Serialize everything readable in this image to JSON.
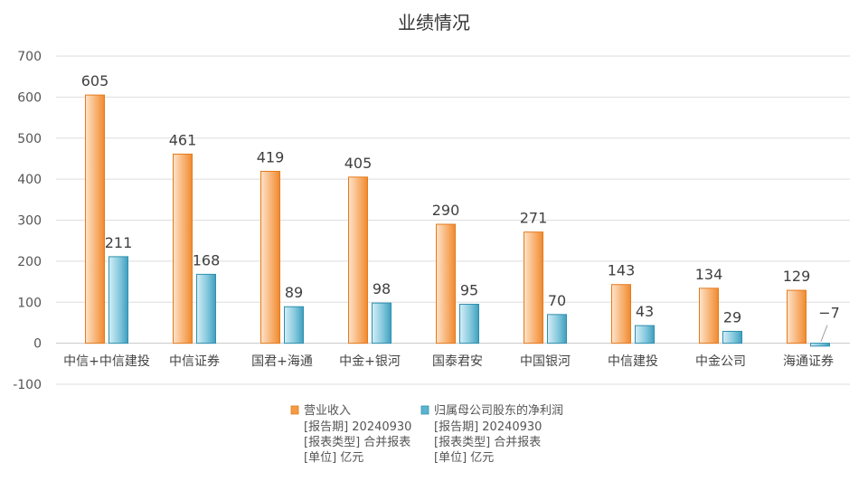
{
  "chart_data": {
    "type": "bar",
    "title": "业绩情况",
    "categories": [
      "中信+中信建投",
      "中信证券",
      "国君+海通",
      "中金+银河",
      "国泰君安",
      "中国银河",
      "中信建投",
      "中金公司",
      "海通证券"
    ],
    "series": [
      {
        "name": "营业收入",
        "values": [
          605,
          461,
          419,
          405,
          290,
          271,
          143,
          134,
          129
        ],
        "color": "#f59a45",
        "notes": [
          "[报告期] 20240930",
          "[报表类型] 合并报表",
          "[单位] 亿元"
        ]
      },
      {
        "name": "归属母公司股东的净利润",
        "values": [
          211,
          168,
          89,
          98,
          95,
          70,
          43,
          29,
          -7
        ],
        "color": "#5bb4cf",
        "notes": [
          "[报告期] 20240930",
          "[报表类型] 合并报表",
          "[单位] 亿元"
        ]
      }
    ],
    "data_labels": [
      [
        "605",
        "461",
        "419",
        "405",
        "290",
        "271",
        "143",
        "134",
        "129"
      ],
      [
        "211",
        "168",
        "89",
        "98",
        "95",
        "70",
        "43",
        "29",
        "−7"
      ]
    ],
    "y_ticks": [
      -100,
      0,
      100,
      200,
      300,
      400,
      500,
      600,
      700
    ],
    "y_tick_labels": [
      "-100",
      "0",
      "100",
      "200",
      "300",
      "400",
      "500",
      "600",
      "700"
    ],
    "ylim": [
      -100,
      700
    ],
    "grid": true,
    "legend": "bottom-center",
    "xlabel": "",
    "ylabel": ""
  }
}
